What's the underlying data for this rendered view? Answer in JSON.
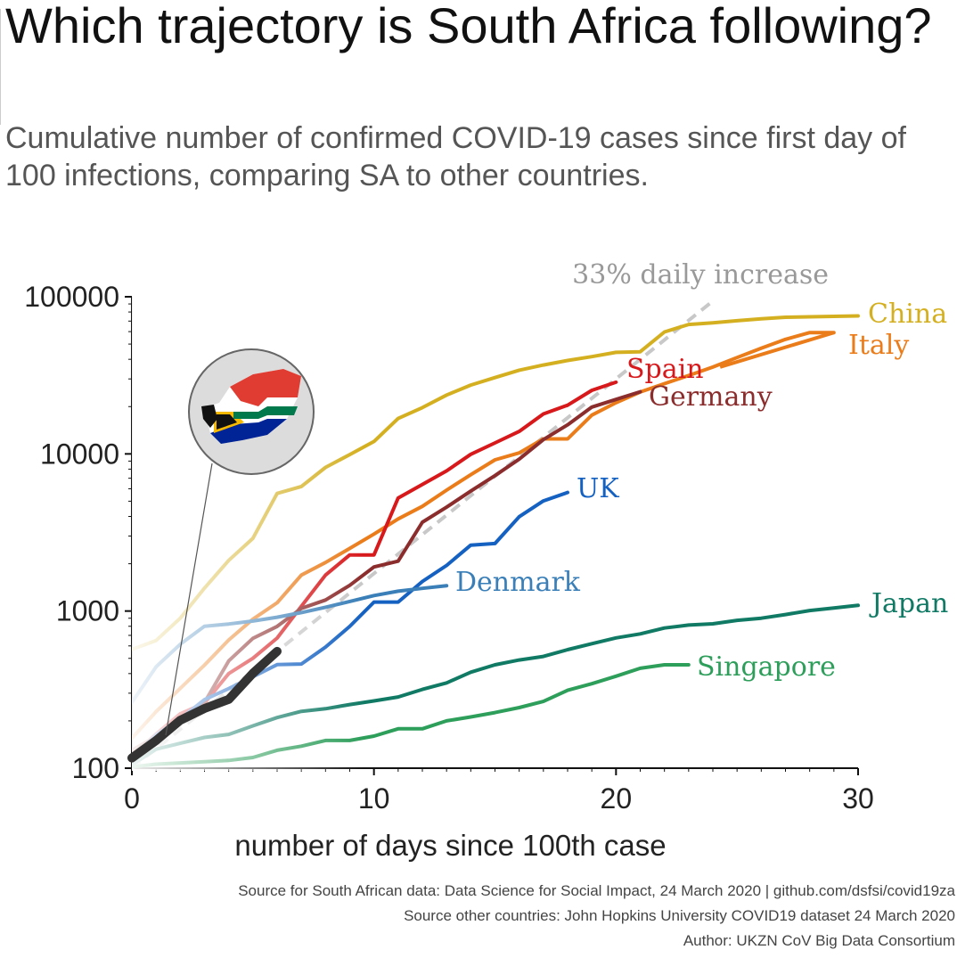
{
  "chart_data": {
    "type": "line",
    "title": "Which trajectory is South Africa following?",
    "subtitle": "Cumulative number of confirmed COVID-19 cases since first day of 100 infections, comparing SA to other countries.",
    "xlabel": "number of days since 100th case",
    "ylabel": "",
    "xlim": [
      0,
      30
    ],
    "ylim": [
      100,
      100000
    ],
    "yscale": "log",
    "x_ticks": [
      "0",
      "10",
      "20",
      "30"
    ],
    "y_ticks": [
      "100",
      "1000",
      "10000",
      "100000"
    ],
    "grid": false,
    "reference_line": {
      "label": "33% daily increase",
      "color": "#c8c8c8",
      "x": [
        0,
        24
      ],
      "y": [
        100,
        94000
      ]
    },
    "series": [
      {
        "name": "China",
        "color": "#d4b021",
        "x": [
          0,
          1,
          2,
          3,
          4,
          5,
          6,
          7,
          8,
          9,
          10,
          11,
          12,
          13,
          14,
          15,
          16,
          17,
          18,
          19,
          20,
          21,
          22,
          23,
          24,
          25,
          26,
          27,
          28,
          29,
          30
        ],
        "y": [
          570,
          650,
          900,
          1400,
          2100,
          2900,
          5600,
          6200,
          8200,
          9900,
          12000,
          16800,
          19700,
          23700,
          27400,
          30600,
          34100,
          36800,
          39300,
          41600,
          44300,
          44700,
          59700,
          66600,
          68300,
          70400,
          72400,
          74100,
          74500,
          75000,
          75500
        ]
      },
      {
        "name": "Italy",
        "color": "#ea7c1a",
        "x": [
          0,
          1,
          2,
          3,
          4,
          5,
          6,
          7,
          8,
          9,
          10,
          11,
          12,
          13,
          14,
          15,
          16,
          17,
          18,
          19,
          20,
          21,
          22,
          23,
          24,
          25,
          26,
          27,
          28,
          29
        ],
        "y": [
          155,
          229,
          322,
          453,
          655,
          888,
          1128,
          1694,
          2036,
          2502,
          3089,
          3858,
          4636,
          5883,
          7375,
          9172,
          10149,
          12462,
          12462,
          17660,
          21157,
          24747,
          27980,
          31506,
          35713,
          41035,
          47021,
          53578,
          59138,
          59138
        ]
      },
      {
        "name": "Spain",
        "color": "#d7191c",
        "x": [
          0,
          1,
          2,
          3,
          4,
          5,
          6,
          7,
          8,
          9,
          10,
          11,
          12,
          13,
          14,
          15,
          16,
          17,
          18,
          19,
          20
        ],
        "y": [
          120,
          165,
          222,
          259,
          400,
          500,
          673,
          1073,
          1695,
          2277,
          2277,
          5232,
          6391,
          7798,
          9942,
          11748,
          13910,
          17963,
          20410,
          25374,
          28603
        ]
      },
      {
        "name": "Germany",
        "color": "#8c2d2d",
        "x": [
          0,
          1,
          2,
          3,
          4,
          5,
          6,
          7,
          8,
          9,
          10,
          11,
          12,
          13,
          14,
          15,
          16,
          17,
          18,
          19,
          20,
          21
        ],
        "y": [
          130,
          159,
          196,
          262,
          482,
          670,
          799,
          1040,
          1176,
          1457,
          1908,
          2078,
          3675,
          4585,
          5795,
          7272,
          9257,
          12327,
          15320,
          19848,
          22213,
          24873
        ]
      },
      {
        "name": "UK",
        "color": "#1461c2",
        "x": [
          0,
          1,
          2,
          3,
          4,
          5,
          6,
          7,
          8,
          9,
          10,
          11,
          12,
          13,
          14,
          15,
          16,
          17,
          18
        ],
        "y": [
          115,
          163,
          206,
          273,
          321,
          382,
          456,
          460,
          590,
          798,
          1140,
          1140,
          1543,
          1950,
          2626,
          2689,
          3983,
          5018,
          5683
        ]
      },
      {
        "name": "Denmark",
        "color": "#3a7fb8",
        "x": [
          0,
          1,
          2,
          3,
          4,
          5,
          6,
          7,
          8,
          9,
          10,
          11,
          12,
          13
        ],
        "y": [
          262,
          442,
          615,
          801,
          827,
          864,
          914,
          977,
          1057,
          1151,
          1255,
          1337,
          1395,
          1450
        ]
      },
      {
        "name": "Japan",
        "color": "#117a65",
        "x": [
          0,
          1,
          2,
          3,
          4,
          5,
          6,
          7,
          8,
          9,
          10,
          11,
          12,
          13,
          14,
          15,
          16,
          17,
          18,
          19,
          20,
          21,
          22,
          23,
          24,
          25,
          26,
          27,
          28,
          29,
          30
        ],
        "y": [
          105,
          132,
          144,
          157,
          164,
          186,
          210,
          230,
          239,
          254,
          268,
          284,
          317,
          349,
          408,
          455,
          488,
          514,
          568,
          620,
          675,
          716,
          780,
          814,
          829,
          873,
          900,
          950,
          1007,
          1046,
          1086
        ]
      },
      {
        "name": "Singapore",
        "color": "#2e9e5b",
        "x": [
          0,
          1,
          2,
          3,
          4,
          5,
          6,
          7,
          8,
          9,
          10,
          11,
          12,
          13,
          14,
          15,
          16,
          17,
          18,
          19,
          20,
          21,
          22,
          23
        ],
        "y": [
          102,
          106,
          108,
          110,
          112,
          117,
          130,
          138,
          150,
          150,
          160,
          178,
          178,
          200,
          212,
          226,
          243,
          266,
          313,
          345,
          385,
          432,
          455,
          455
        ]
      },
      {
        "name": "",
        "color": "#333333",
        "x": [
          0,
          1,
          2,
          3,
          4,
          5,
          6
        ],
        "y": [
          116,
          150,
          202,
          240,
          274,
          402,
          554
        ]
      }
    ],
    "labels_right": [
      {
        "series": "China",
        "text": "China"
      },
      {
        "series": "Italy",
        "text": "Italy"
      },
      {
        "series": "Spain",
        "text": "Spain"
      },
      {
        "series": "Germany",
        "text": "Germany"
      },
      {
        "series": "UK",
        "text": "UK"
      },
      {
        "series": "Denmark",
        "text": "Denmark"
      },
      {
        "series": "Japan",
        "text": "Japan"
      },
      {
        "series": "Singapore",
        "text": "Singapore"
      }
    ]
  },
  "sources": {
    "line1": "Source for South African data: Data Science for Social Impact, 24 March 2020 | github.com/dsfsi/covid19za",
    "line2": "Source other countries: John Hopkins University COVID19 dataset 24 March 2020",
    "line3": "Author: UKZN CoV Big Data Consortium"
  },
  "icons": {
    "badge": "south-africa-flag-map-icon"
  }
}
